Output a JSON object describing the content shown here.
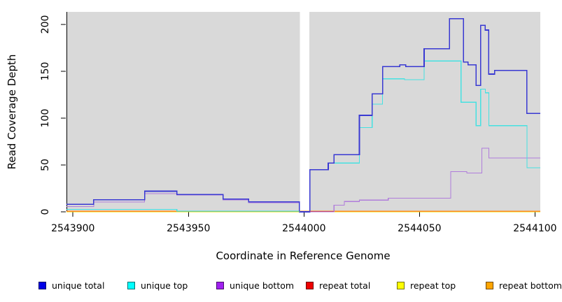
{
  "chart_data": {
    "type": "line-step",
    "title": "",
    "xlabel": "Coordinate in Reference Genome",
    "ylabel": "Read Coverage Depth",
    "xlim": [
      2543897.2,
      2544102.3
    ],
    "ylim": [
      0,
      213.4
    ],
    "plot_bg_color": "#d9d9d9",
    "grid": "off",
    "legend_position": "bottom",
    "xticks": {
      "values": [
        2543900,
        2543950,
        2544000,
        2544050,
        2544100
      ],
      "labels": [
        "2543900",
        "2543950",
        "2544000",
        "2544050",
        "2544100"
      ]
    },
    "yticks": {
      "values": [
        0,
        50,
        100,
        150,
        200
      ],
      "labels": [
        "0",
        "50",
        "100",
        "150",
        "200"
      ]
    },
    "gap_band": {
      "from": 2543998.3,
      "to": 2544002.4,
      "color": "#ffffff"
    },
    "series": [
      {
        "name": "repeat total",
        "color": "#d42222",
        "width": 1.2,
        "steps": [
          [
            2543897.2,
            0
          ],
          [
            2544102.3,
            0
          ]
        ]
      },
      {
        "name": "repeat top",
        "color": "#e8e800",
        "width": 1.2,
        "steps": [
          [
            2543897.2,
            0
          ],
          [
            2544102.3,
            0
          ]
        ]
      },
      {
        "name": "repeat bottom",
        "color": "#ff8c1a",
        "width": 1.8,
        "steps": [
          [
            2543897.2,
            0.5
          ],
          [
            2544102.3,
            0.5
          ]
        ]
      },
      {
        "name": "unique bottom",
        "color": "#b07ddb",
        "width": 1.2,
        "steps": [
          [
            2543897.2,
            5.5
          ],
          [
            2543909,
            10.5
          ],
          [
            2543931,
            19.5
          ],
          [
            2543945,
            17.8
          ],
          [
            2543965,
            12.8
          ],
          [
            2543976,
            9.8
          ],
          [
            2543998,
            0
          ],
          [
            2544013,
            7
          ],
          [
            2544017.5,
            11
          ],
          [
            2544024,
            12.5
          ],
          [
            2544036.5,
            14.5
          ],
          [
            2544063.5,
            43
          ],
          [
            2544070.5,
            41.5
          ],
          [
            2544077,
            68
          ],
          [
            2544080,
            57.5
          ],
          [
            2544102.3,
            57.5
          ]
        ]
      },
      {
        "name": "unique top",
        "color": "#45e1e1",
        "width": 1.2,
        "steps": [
          [
            2543897.2,
            2.5
          ],
          [
            2543945,
            0.7
          ],
          [
            2543998,
            0
          ],
          [
            2544002.5,
            45
          ],
          [
            2544010.5,
            52
          ],
          [
            2544024,
            90
          ],
          [
            2544029.5,
            115
          ],
          [
            2544034,
            142
          ],
          [
            2544043.5,
            141
          ],
          [
            2544052,
            161
          ],
          [
            2544068,
            117
          ],
          [
            2544074.5,
            92
          ],
          [
            2544076.5,
            131
          ],
          [
            2544078.5,
            127
          ],
          [
            2544080,
            92
          ],
          [
            2544096.5,
            47
          ],
          [
            2544102.3,
            47
          ]
        ]
      },
      {
        "name": "unique total",
        "color": "#3939d2",
        "width": 1.6,
        "steps": [
          [
            2543897.2,
            8
          ],
          [
            2543909,
            13
          ],
          [
            2543931,
            22
          ],
          [
            2543945,
            18.5
          ],
          [
            2543965,
            13.5
          ],
          [
            2543976,
            10.5
          ],
          [
            2543998,
            0
          ],
          [
            2544002.5,
            45
          ],
          [
            2544010.5,
            52
          ],
          [
            2544013,
            61
          ],
          [
            2544024,
            103
          ],
          [
            2544029.5,
            126
          ],
          [
            2544034,
            155
          ],
          [
            2544041.5,
            157
          ],
          [
            2544044,
            155
          ],
          [
            2544052,
            174
          ],
          [
            2544063,
            206
          ],
          [
            2544069,
            160
          ],
          [
            2544071,
            157
          ],
          [
            2544074.5,
            135
          ],
          [
            2544076.5,
            199
          ],
          [
            2544078.5,
            194
          ],
          [
            2544080,
            147
          ],
          [
            2544082.5,
            151
          ],
          [
            2544096.5,
            105
          ],
          [
            2544102.3,
            105
          ]
        ]
      }
    ],
    "axis_overlays": [
      {
        "from": 2543945,
        "to": 2543998.3,
        "value": 0,
        "color": "#7ec97e",
        "width": 1.4
      },
      {
        "from": 2544002.5,
        "to": 2544013,
        "value": 0,
        "color": "#c04878",
        "width": 1.4
      }
    ],
    "legend": {
      "items": [
        {
          "label": "unique total",
          "fill": "#0000e6"
        },
        {
          "label": "unique top",
          "fill": "#00ffff"
        },
        {
          "label": "unique bottom",
          "fill": "#a020f0"
        },
        {
          "label": "repeat total",
          "fill": "#ee0000"
        },
        {
          "label": "repeat top",
          "fill": "#ffff00"
        },
        {
          "label": "repeat bottom",
          "fill": "#ffa500"
        }
      ]
    }
  }
}
